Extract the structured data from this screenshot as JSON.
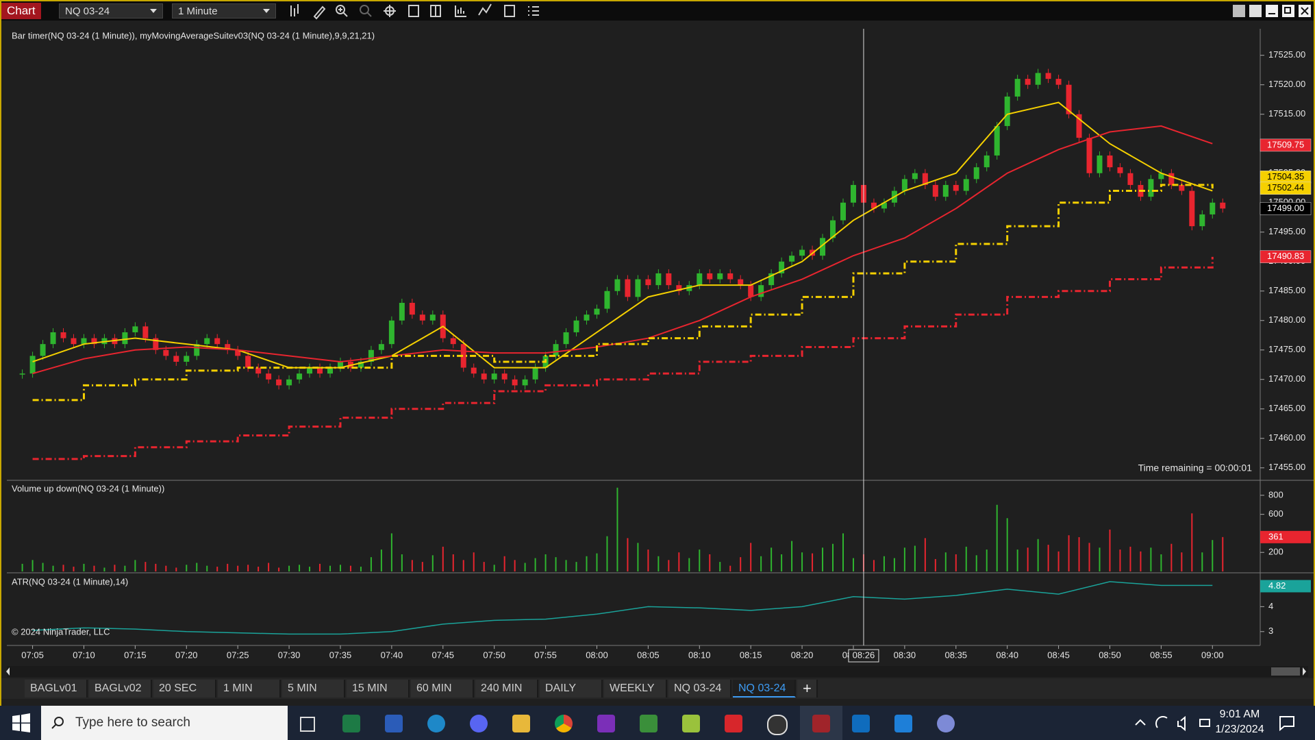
{
  "title_bar": {
    "label": "Chart",
    "instrument": "NQ 03-24",
    "interval": "1 Minute"
  },
  "chart_data": [
    {
      "type": "candlestick",
      "title": "Bar timer(NQ 03-24 (1 Minute)), myMovingAverageSuitev03(NQ 03-24 (1 Minute),9,9,21,21)",
      "annotation": "Time remaining = 00:00:01",
      "up_color": "#2fb52f",
      "down_color": "#e8252f",
      "values": [
        17471,
        17474,
        17476,
        17478,
        17477,
        17476,
        17477,
        17476,
        17477,
        17476,
        17478,
        17479,
        17477,
        17475,
        17474,
        17473,
        17474,
        17476,
        17477,
        17476,
        17475,
        17474,
        17472,
        17471,
        17470,
        17469,
        17470,
        17471,
        17472,
        17471,
        17472,
        17473,
        17472,
        17473,
        17475,
        17476,
        17480,
        17483,
        17481,
        17480,
        17481,
        17477,
        17476,
        17472,
        17471,
        17470,
        17471,
        17470,
        17469,
        17470,
        17472,
        17474,
        17476,
        17478,
        17480,
        17481,
        17482,
        17485,
        17487,
        17484,
        17487,
        17486,
        17488,
        17486,
        17485,
        17486,
        17488,
        17487,
        17488,
        17487,
        17486,
        17484,
        17486,
        17488,
        17490,
        17491,
        17492,
        17491,
        17494,
        17497,
        17500,
        17503,
        17500,
        17499,
        17500,
        17502,
        17504,
        17505,
        17503,
        17501,
        17503,
        17502,
        17504,
        17506,
        17508,
        17513,
        17518,
        17521,
        17520,
        17522,
        17521,
        17520,
        17515,
        17511,
        17505,
        17508,
        17506,
        17505,
        17503,
        17501,
        17504,
        17505,
        17503,
        17502,
        17496,
        17498,
        17500,
        17499
      ],
      "ylim": [
        17453,
        17529.5
      ],
      "yticks": [
        {
          "value": 17455,
          "label": "17455.00"
        },
        {
          "value": 17460,
          "label": "17460.00"
        },
        {
          "value": 17465,
          "label": "17465.00"
        },
        {
          "value": 17470,
          "label": "17470.00"
        },
        {
          "value": 17475,
          "label": "17475.00"
        },
        {
          "value": 17480,
          "label": "17480.00"
        },
        {
          "value": 17485,
          "label": "17485.00"
        },
        {
          "value": 17490,
          "label": "17490.00"
        },
        {
          "value": 17495,
          "label": "17495.00"
        },
        {
          "value": 17500,
          "label": "17500.00"
        },
        {
          "value": 17505,
          "label": "17505.00"
        },
        {
          "value": 17510,
          "label": "17510.00"
        },
        {
          "value": 17515,
          "label": "17515.00"
        },
        {
          "value": 17520,
          "label": "17520.00"
        },
        {
          "value": 17525,
          "label": "17525.00"
        }
      ],
      "series": [
        {
          "color": "#f5d000",
          "style": "solid",
          "x": [
            1,
            6,
            11,
            16,
            21,
            26,
            31,
            36,
            41,
            46,
            51,
            56,
            61,
            66,
            71,
            76,
            81,
            86,
            91,
            96,
            101,
            106,
            111,
            116
          ],
          "values": [
            17473,
            17476,
            17477,
            17476,
            17475,
            17472,
            17472,
            17474,
            17479,
            17472,
            17472,
            17478,
            17484,
            17486,
            17486,
            17490,
            17497,
            17502,
            17505,
            17515,
            17517,
            17510,
            17505,
            17502
          ]
        },
        {
          "color": "#e8252f",
          "style": "solid",
          "x": [
            1,
            6,
            11,
            16,
            21,
            26,
            31,
            36,
            41,
            46,
            51,
            56,
            61,
            66,
            71,
            76,
            81,
            86,
            91,
            96,
            101,
            106,
            111,
            116
          ],
          "values": [
            17471,
            17473.5,
            17475,
            17475.5,
            17475,
            17474,
            17473,
            17474,
            17475,
            17474.5,
            17474.5,
            17475.5,
            17477,
            17480,
            17484,
            17487,
            17491,
            17494,
            17499,
            17505,
            17509,
            17512,
            17513,
            17510
          ]
        },
        {
          "color": "#f5d000",
          "style": "dashed",
          "x": [
            1,
            6,
            11,
            16,
            21,
            26,
            31,
            36,
            41,
            46,
            51,
            56,
            61,
            66,
            71,
            76,
            81,
            86,
            91,
            96,
            101,
            106,
            111,
            116
          ],
          "values": [
            17466.5,
            17469,
            17470,
            17471.5,
            17472,
            17472,
            17472,
            17474,
            17474,
            17473,
            17474,
            17476,
            17477,
            17479,
            17481,
            17484,
            17488,
            17490,
            17493,
            17496,
            17500,
            17502,
            17503,
            17502.4
          ]
        },
        {
          "color": "#e8252f",
          "style": "dashed",
          "x": [
            1,
            6,
            11,
            16,
            21,
            26,
            31,
            36,
            41,
            46,
            51,
            56,
            61,
            66,
            71,
            76,
            81,
            86,
            91,
            96,
            101,
            106,
            111,
            116
          ],
          "values": [
            17456.5,
            17457,
            17458.5,
            17459.5,
            17460.5,
            17462,
            17463.5,
            17465,
            17466,
            17468,
            17469,
            17470,
            17471,
            17473,
            17474,
            17475.5,
            17477,
            17479,
            17481,
            17484,
            17485,
            17487,
            17489,
            17490.8
          ]
        }
      ],
      "price_markers": [
        {
          "value": 17509.75,
          "label": "17509.75",
          "color": "#e8252f",
          "text_color": "#ffffff"
        },
        {
          "value": 17504.35,
          "label": "17504.35",
          "color": "#f5d000",
          "text_color": "#000000"
        },
        {
          "value": 17502.44,
          "label": "17502.44",
          "color": "#f5d000",
          "text_color": "#000000"
        },
        {
          "value": 17499,
          "label": "17499.00",
          "color": "#000000",
          "text_color": "#ffffff"
        },
        {
          "value": 17490.83,
          "label": "17490.83",
          "color": "#e8252f",
          "text_color": "#ffffff"
        }
      ]
    },
    {
      "type": "bar",
      "title": "Volume up down(NQ 03-24 (1 Minute))",
      "values": [
        80,
        120,
        90,
        60,
        70,
        50,
        80,
        60,
        40,
        70,
        60,
        120,
        100,
        80,
        60,
        40,
        70,
        90,
        60,
        50,
        80,
        60,
        70,
        50,
        90,
        40,
        60,
        70,
        50,
        80,
        60,
        70,
        60,
        50,
        150,
        230,
        400,
        180,
        120,
        100,
        170,
        260,
        180,
        120,
        200,
        100,
        70,
        160,
        120,
        90,
        140,
        180,
        150,
        120,
        100,
        160,
        190,
        370,
        880,
        350,
        300,
        230,
        160,
        120,
        200,
        140,
        230,
        180,
        100,
        60,
        150,
        300,
        160,
        250,
        180,
        320,
        200,
        190,
        250,
        290,
        400,
        140,
        180,
        120,
        160,
        140,
        250,
        270,
        350,
        130,
        200,
        180,
        260,
        170,
        230,
        700,
        560,
        230,
        250,
        340,
        280,
        210,
        380,
        360,
        300,
        250,
        440,
        230,
        260,
        210,
        250,
        180,
        290,
        200,
        610,
        200,
        330,
        361
      ],
      "ylim": [
        0,
        950
      ],
      "yticks": [
        200,
        600,
        800
      ],
      "marker": {
        "value": 361,
        "color": "#e8252f"
      }
    },
    {
      "type": "line",
      "title": "ATR(NQ 03-24 (1 Minute),14)",
      "color": "#1aa39a",
      "x": [
        1,
        6,
        11,
        16,
        21,
        26,
        31,
        36,
        41,
        46,
        51,
        56,
        61,
        66,
        71,
        76,
        81,
        86,
        91,
        96,
        101,
        106,
        111,
        116
      ],
      "values": [
        3.05,
        3.15,
        3.1,
        3.0,
        2.95,
        2.9,
        2.9,
        3.0,
        3.3,
        3.45,
        3.5,
        3.7,
        4.0,
        3.95,
        3.85,
        4.0,
        4.4,
        4.3,
        4.45,
        4.7,
        4.5,
        5.0,
        4.85,
        4.85
      ],
      "ylim": [
        2.5,
        5.3
      ],
      "yticks": [
        3,
        4
      ],
      "marker": 4.82,
      "xticks": [
        {
          "value": 1,
          "label": "07:05"
        },
        {
          "value": 6,
          "label": "07:10"
        },
        {
          "value": 11,
          "label": "07:15"
        },
        {
          "value": 16,
          "label": "07:20"
        },
        {
          "value": 21,
          "label": "07:25"
        },
        {
          "value": 26,
          "label": "07:30"
        },
        {
          "value": 31,
          "label": "07:35"
        },
        {
          "value": 36,
          "label": "07:40"
        },
        {
          "value": 41,
          "label": "07:45"
        },
        {
          "value": 46,
          "label": "07:50"
        },
        {
          "value": 51,
          "label": "07:55"
        },
        {
          "value": 56,
          "label": "08:00"
        },
        {
          "value": 61,
          "label": "08:05"
        },
        {
          "value": 66,
          "label": "08:10"
        },
        {
          "value": 71,
          "label": "08:15"
        },
        {
          "value": 76,
          "label": "08:20"
        },
        {
          "value": 81,
          "label": "08:25"
        },
        {
          "value": 86,
          "label": "08:30"
        },
        {
          "value": 91,
          "label": "08:35"
        },
        {
          "value": 96,
          "label": "08:40"
        },
        {
          "value": 101,
          "label": "08:45"
        },
        {
          "value": 106,
          "label": "08:50"
        },
        {
          "value": 111,
          "label": "08:55"
        },
        {
          "value": 116,
          "label": "09:00"
        }
      ]
    }
  ],
  "cursor": {
    "value": 82,
    "label": "08:26"
  },
  "copyright": "© 2024 NinjaTrader, LLC",
  "tabs": [
    "BAGLv01",
    "BAGLv02",
    "20 SEC",
    "1 MIN",
    "5 MIN",
    "15 MIN",
    "60 MIN",
    "240 MIN",
    "DAILY",
    "WEEKLY",
    "NQ 03-24",
    "NQ 03-24"
  ],
  "tab_add": "+",
  "taskbar": {
    "search": "Type here to search",
    "time": "9:01 AM",
    "date": "1/23/2024"
  }
}
